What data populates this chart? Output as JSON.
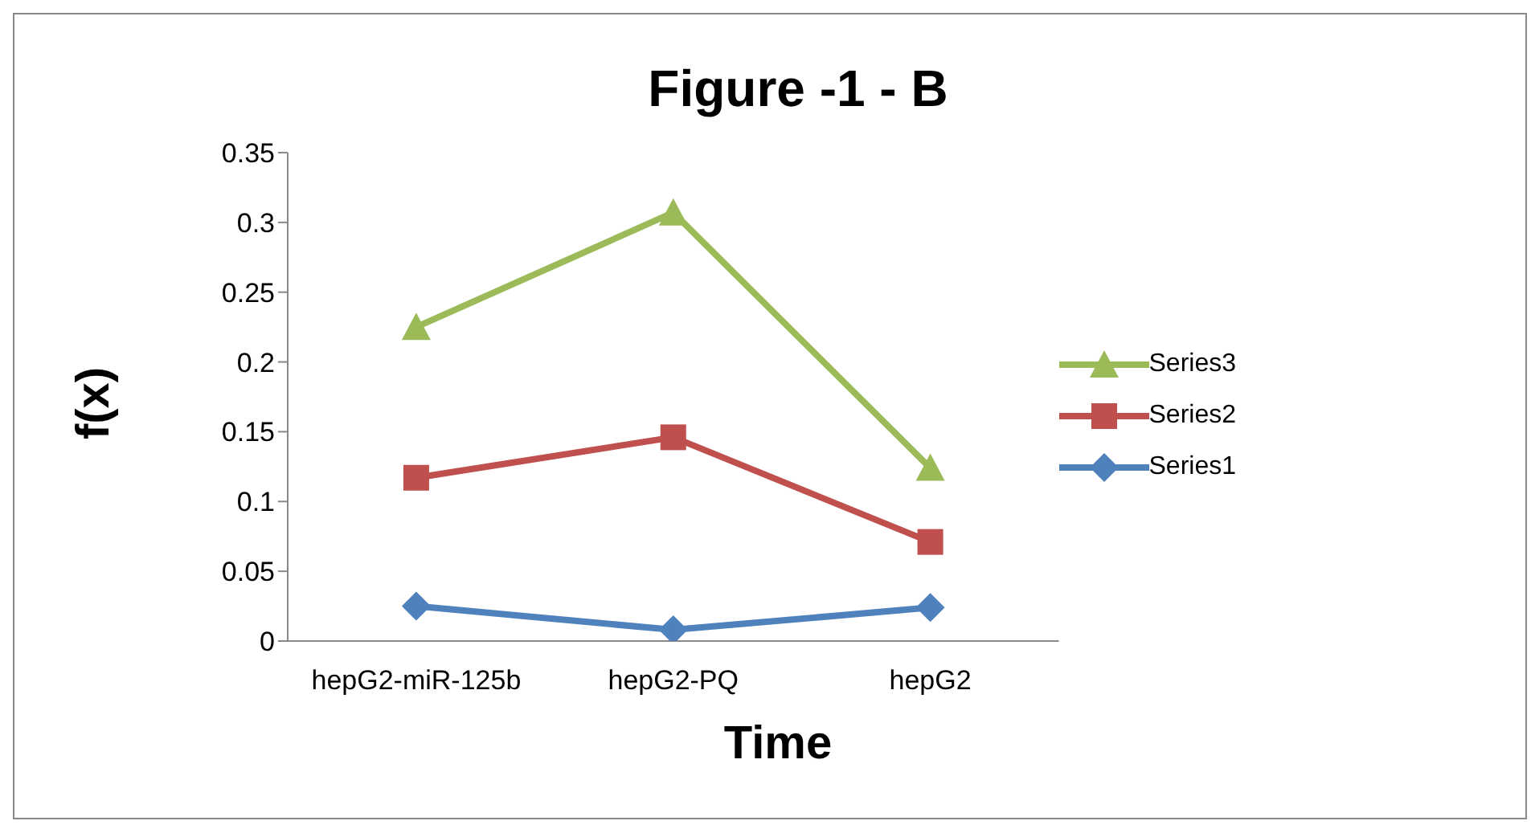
{
  "chart_data": {
    "type": "line",
    "title": "Figure -1 - B",
    "xlabel": "Time",
    "ylabel": "f(x)",
    "categories": [
      "hepG2-miR-125b",
      "hepG2-PQ",
      "hepG2"
    ],
    "series": [
      {
        "name": "Series1",
        "color": "#4f81bd",
        "marker": "diamond",
        "values": [
          0.025,
          0.008,
          0.024
        ]
      },
      {
        "name": "Series2",
        "color": "#c0504d",
        "marker": "square",
        "values": [
          0.117,
          0.146,
          0.071
        ]
      },
      {
        "name": "Series3",
        "color": "#9bbb59",
        "marker": "triangle",
        "values": [
          0.225,
          0.307,
          0.124
        ]
      }
    ],
    "ylim": [
      0,
      0.35
    ],
    "yticks": [
      0,
      0.05,
      0.1,
      0.15,
      0.2,
      0.25,
      0.3,
      0.35
    ],
    "grid": false,
    "legend": "right",
    "line_style": "solid"
  }
}
